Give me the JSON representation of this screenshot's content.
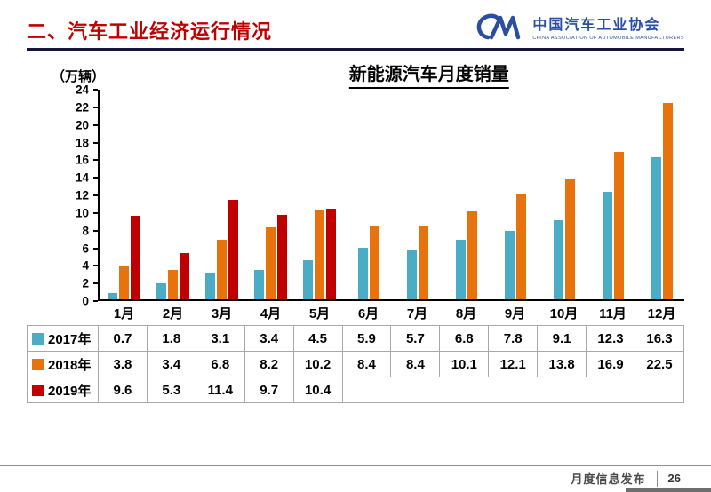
{
  "header": {
    "title": "二、汽车工业经济运行情况",
    "logo": {
      "org_cn": "中国汽车工业协会",
      "org_en": "CHINA ASSOCIATION OF AUTOMOBILE MANUFACTURERS",
      "brand_color": "#2b4ea2"
    }
  },
  "chart_data": {
    "type": "bar",
    "title": "新能源汽车月度销量",
    "unit_label": "（万辆）",
    "categories": [
      "1月",
      "2月",
      "3月",
      "4月",
      "5月",
      "6月",
      "7月",
      "8月",
      "9月",
      "10月",
      "11月",
      "12月"
    ],
    "series": [
      {
        "name": "2017年",
        "color": "#4BACC6",
        "values": [
          0.7,
          1.8,
          3.1,
          3.4,
          4.5,
          5.9,
          5.7,
          6.8,
          7.8,
          9.1,
          12.3,
          16.3
        ]
      },
      {
        "name": "2018年",
        "color": "#E8730C",
        "values": [
          3.8,
          3.4,
          6.8,
          8.2,
          10.2,
          8.4,
          8.4,
          10.1,
          12.1,
          13.8,
          16.9,
          22.5
        ]
      },
      {
        "name": "2019年",
        "color": "#C00000",
        "values": [
          9.6,
          5.3,
          11.4,
          9.7,
          10.4
        ]
      }
    ],
    "ylim": [
      0,
      24
    ],
    "ytick_step": 2,
    "grid": false,
    "legend_position": "table-below"
  },
  "footer": {
    "label": "月度信息发布",
    "page": "26"
  }
}
